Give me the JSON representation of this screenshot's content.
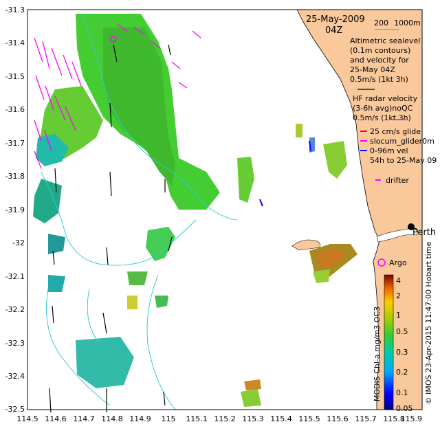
{
  "date_line": "25-May-2009",
  "time_line": "04Z",
  "scale": {
    "left": "200",
    "right": "1000m"
  },
  "legend": {
    "altimetric": [
      "Altimetric sealevel",
      "(0.1m contours)",
      "and velocity for",
      "25-May 04Z",
      "0.5m/s (1kt 3h)"
    ],
    "hf_radar": [
      "HF radar velocity",
      "(3-6h avg)noQC",
      "0.5m/s (1kt 3h)"
    ],
    "glider": [
      "25 cm/s glide",
      "slocum_glider0m",
      "0-96m vel",
      "54h to 25-May 09"
    ],
    "drifter": "drifter",
    "argo": "Argo",
    "perth": "Perth"
  },
  "colorbar": {
    "ticks": [
      "4",
      "2",
      "1",
      "0.5",
      "0.3",
      "0.2",
      "0.1",
      "0.05"
    ],
    "label": "MODIS Chl-a mg/m3 OC3"
  },
  "credit": "© IMOS 23-Apr-2015 11:47:00 Hobart time",
  "axes": {
    "x_ticks": [
      "114.5",
      "114.6",
      "114.7",
      "114.8",
      "114.9",
      "115",
      "115.1",
      "115.2",
      "115.3",
      "115.4",
      "115.5",
      "115.6",
      "115.7",
      "115.8",
      "115.9"
    ],
    "y_ticks": [
      "-31.3",
      "-31.4",
      "-31.5",
      "-31.6",
      "-31.7",
      "-31.8",
      "-31.9",
      "-32",
      "-32.1",
      "-32.2",
      "-32.3",
      "-32.4",
      "-32.5"
    ],
    "xlim": [
      114.5,
      115.9
    ],
    "ylim": [
      -32.5,
      -31.3
    ]
  },
  "colors": {
    "land": "#f9c89b",
    "hf_radar": "#ff00ff",
    "contour": "#33cccc",
    "glider": "#ff0000",
    "glider_vel": "#0000ff"
  }
}
